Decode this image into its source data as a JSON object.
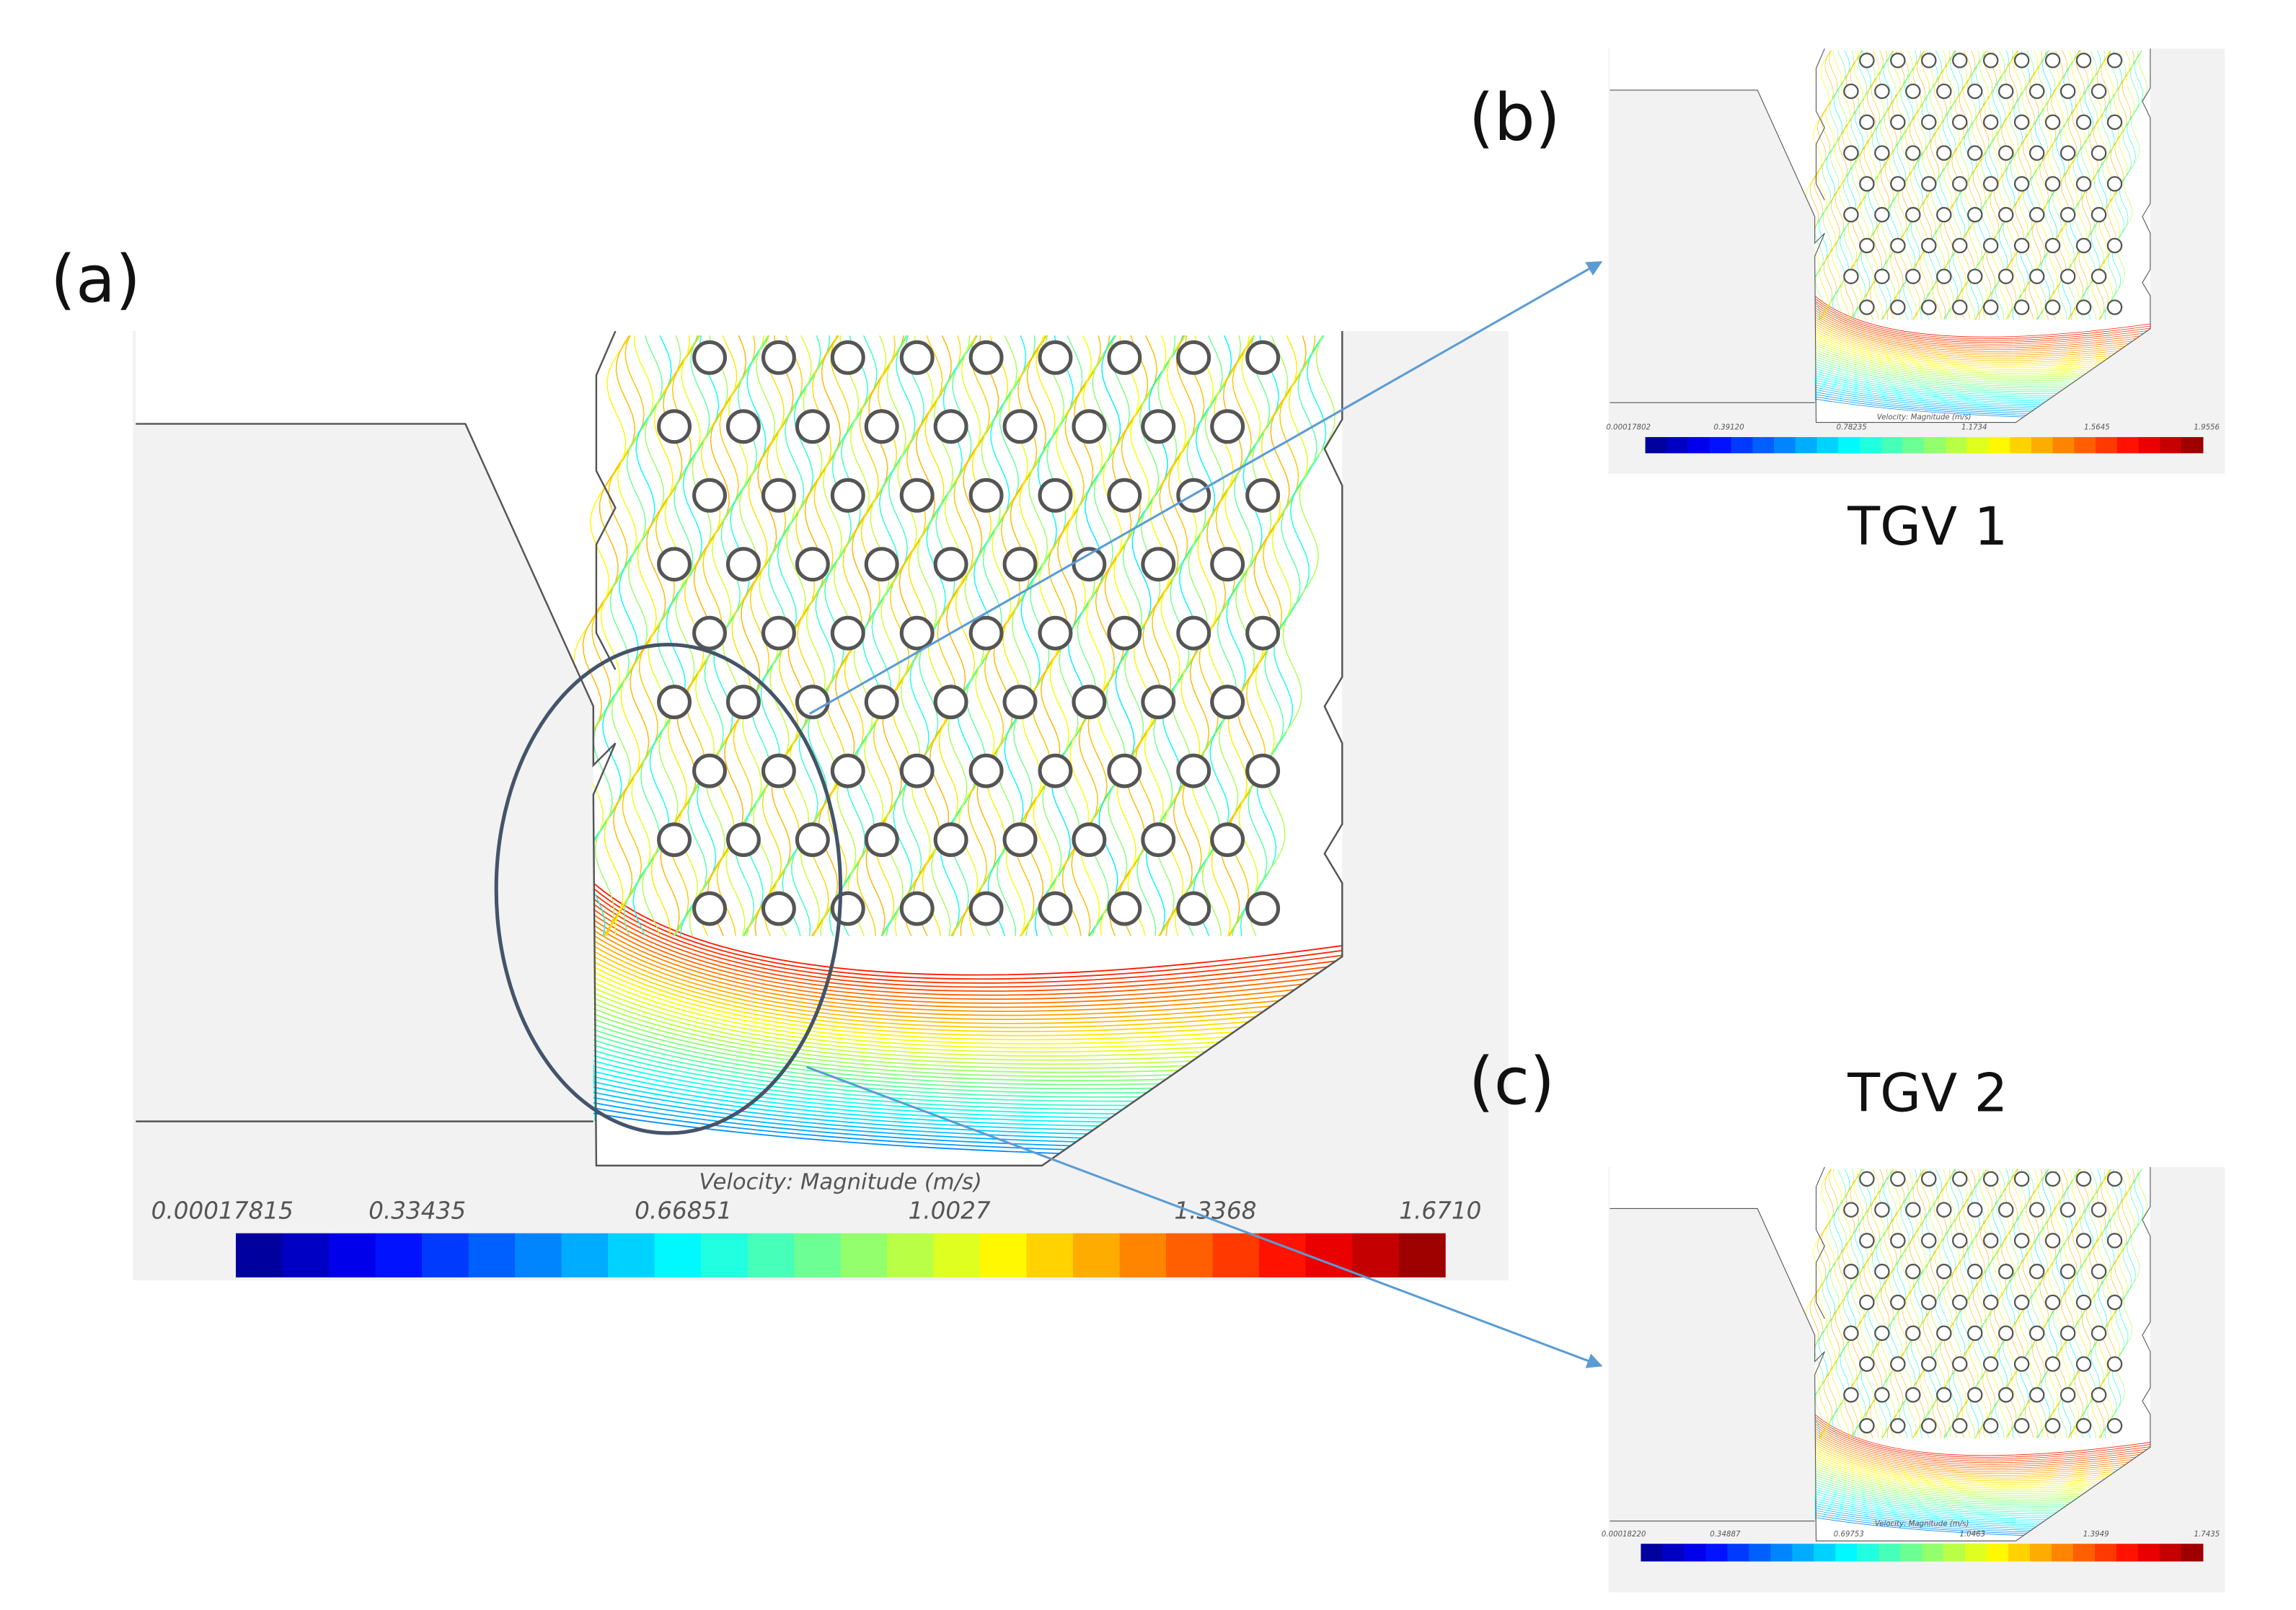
{
  "panels": [
    {
      "label": "(a)",
      "colorbar": {
        "title": "Velocity: Magnitude (m/s)",
        "ticks": [
          "0.00017815",
          "0.33435",
          "0.66851",
          "1.0027",
          "1.3368",
          "1.6710"
        ]
      }
    },
    {
      "label": "(b)",
      "caption": "TGV 1",
      "colorbar": {
        "title": "Velocity: Magnitude (m/s)",
        "ticks": [
          "0.00017802",
          "0.39120",
          "0.78235",
          "1.1734",
          "1.5645",
          "1.9556"
        ]
      }
    },
    {
      "label": "(c)",
      "caption": "TGV 2",
      "colorbar": {
        "title": "Velocity: Magnitude (m/s)",
        "ticks": [
          "0.00018220",
          "0.34887",
          "0.69753",
          "1.0463",
          "1.3949",
          "1.7435"
        ]
      }
    }
  ]
}
